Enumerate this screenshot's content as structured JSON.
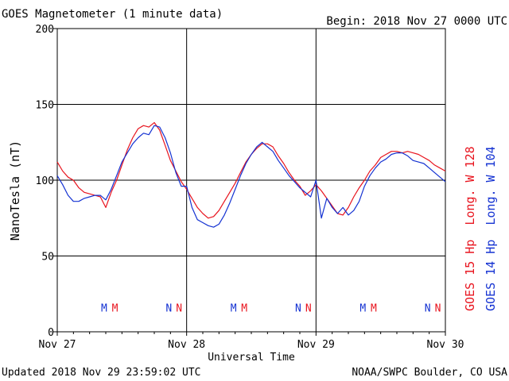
{
  "header": {
    "title": "GOES Magnetometer (1 minute data)",
    "begin": "Begin:  2018 Nov 27 0000 UTC"
  },
  "footer": {
    "updated": "Updated 2018 Nov 29 23:59:02 UTC",
    "credit": "NOAA/SWPC Boulder, CO USA"
  },
  "colors": {
    "goes15": "#e8141e",
    "goes14": "#1432d2",
    "grid": "#000000"
  },
  "chart_data": {
    "type": "line",
    "xlabel": "Universal Time",
    "ylabel": "NanoTesla (nT)",
    "xlim": [
      0,
      72
    ],
    "ylim": [
      0,
      200
    ],
    "x_unit": "hours since 2018 Nov 27 0000 UTC",
    "x_ticks": [
      {
        "x": 0,
        "label": "Nov 27"
      },
      {
        "x": 24,
        "label": "Nov 28"
      },
      {
        "x": 48,
        "label": "Nov 29"
      },
      {
        "x": 72,
        "label": "Nov 30"
      }
    ],
    "y_ticks": [
      0,
      50,
      100,
      150,
      200
    ],
    "grid": true,
    "legend": "right side, vertical",
    "series": [
      {
        "name": "GOES 15 Hp  Long. W 128",
        "color": "#e8141e",
        "x": [
          0,
          1,
          2,
          3,
          4,
          5,
          6,
          7,
          8,
          9,
          10,
          11,
          12,
          13,
          14,
          15,
          16,
          17,
          18,
          19,
          20,
          21,
          22,
          23,
          24,
          25,
          26,
          27,
          28,
          29,
          30,
          31,
          32,
          33,
          34,
          35,
          36,
          37,
          38,
          39,
          40,
          41,
          42,
          43,
          44,
          45,
          46,
          47,
          48,
          49,
          50,
          51,
          52,
          53,
          54,
          55,
          56,
          57,
          58,
          59,
          60,
          61,
          62,
          63,
          64,
          65,
          66,
          67,
          68,
          69,
          70,
          71,
          72
        ],
        "y": [
          112,
          106,
          102,
          100,
          95,
          92,
          91,
          90,
          89,
          82,
          92,
          100,
          110,
          120,
          128,
          134,
          136,
          135,
          138,
          133,
          123,
          113,
          106,
          99,
          94,
          88,
          82,
          78,
          75,
          76,
          80,
          86,
          92,
          98,
          105,
          112,
          117,
          121,
          124,
          124,
          122,
          116,
          111,
          105,
          100,
          96,
          90,
          93,
          97,
          93,
          88,
          83,
          78,
          77,
          82,
          89,
          95,
          100,
          106,
          110,
          115,
          117,
          119,
          119,
          118,
          119,
          118,
          117,
          115,
          113,
          110,
          108,
          106
        ]
      },
      {
        "name": "GOES 14 Hp  Long. W 104",
        "color": "#1432d2",
        "x": [
          0,
          1,
          2,
          3,
          4,
          5,
          6,
          7,
          8,
          9,
          10,
          11,
          12,
          13,
          14,
          15,
          16,
          17,
          18,
          19,
          20,
          21,
          22,
          23,
          24,
          25,
          26,
          27,
          28,
          29,
          30,
          31,
          32,
          33,
          34,
          35,
          36,
          37,
          38,
          39,
          40,
          41,
          42,
          43,
          44,
          45,
          46,
          47,
          48,
          49,
          50,
          51,
          52,
          53,
          54,
          55,
          56,
          57,
          58,
          59,
          60,
          61,
          62,
          63,
          64,
          65,
          66,
          67,
          68,
          69,
          70,
          71,
          72
        ],
        "y": [
          103,
          97,
          90,
          86,
          86,
          88,
          89,
          90,
          90,
          87,
          94,
          103,
          112,
          118,
          124,
          128,
          131,
          130,
          136,
          135,
          128,
          118,
          105,
          96,
          96,
          82,
          74,
          72,
          70,
          69,
          71,
          77,
          85,
          94,
          103,
          111,
          117,
          122,
          125,
          122,
          119,
          113,
          108,
          103,
          99,
          95,
          92,
          89,
          100,
          75,
          88,
          82,
          78,
          82,
          77,
          80,
          86,
          96,
          103,
          108,
          112,
          114,
          117,
          118,
          118,
          116,
          113,
          112,
          111,
          108,
          105,
          102,
          99
        ]
      }
    ],
    "annotations": [
      {
        "text": "M",
        "x": 8.7,
        "series": "GOES 14 Hp  Long. W 104"
      },
      {
        "text": "M",
        "x": 10.7,
        "series": "GOES 15 Hp  Long. W 128"
      },
      {
        "text": "N",
        "x": 20.7,
        "series": "GOES 14 Hp  Long. W 104"
      },
      {
        "text": "N",
        "x": 22.6,
        "series": "GOES 15 Hp  Long. W 128"
      },
      {
        "text": "M",
        "x": 32.7,
        "series": "GOES 14 Hp  Long. W 104"
      },
      {
        "text": "M",
        "x": 34.7,
        "series": "GOES 15 Hp  Long. W 128"
      },
      {
        "text": "N",
        "x": 44.7,
        "series": "GOES 14 Hp  Long. W 104"
      },
      {
        "text": "N",
        "x": 46.6,
        "series": "GOES 15 Hp  Long. W 128"
      },
      {
        "text": "M",
        "x": 56.7,
        "series": "GOES 14 Hp  Long. W 104"
      },
      {
        "text": "M",
        "x": 58.7,
        "series": "GOES 15 Hp  Long. W 128"
      },
      {
        "text": "N",
        "x": 68.7,
        "series": "GOES 14 Hp  Long. W 104"
      },
      {
        "text": "N",
        "x": 70.6,
        "series": "GOES 15 Hp  Long. W 128"
      }
    ],
    "annotation_y": 16
  }
}
